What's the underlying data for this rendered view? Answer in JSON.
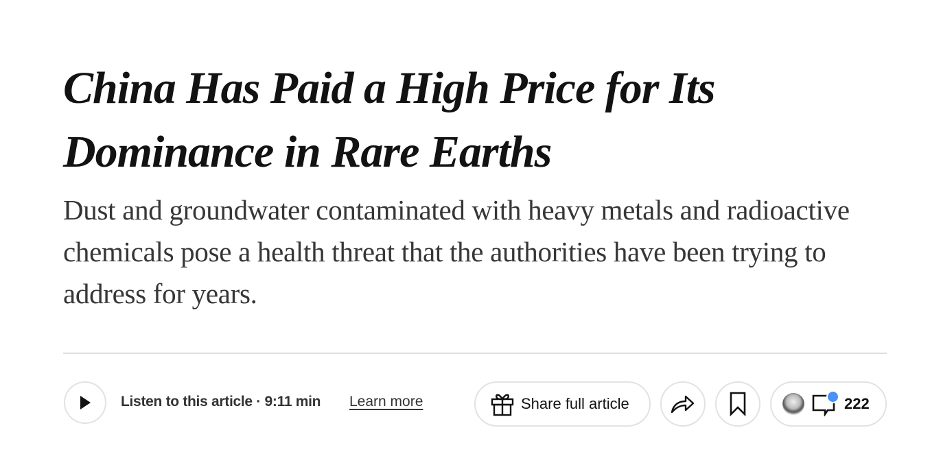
{
  "headline": "China Has Paid a High Price for Its Dominance in Rare Earths",
  "summary": "Dust and groundwater contaminated with heavy metals and radioactive chemicals pose a health threat that the authorities have been trying to address for years.",
  "toolbar": {
    "listen_label": "Listen to this article · 9:11 min",
    "learn_more": "Learn more",
    "share_full_article": "Share full article",
    "comment_count": "222",
    "notification_color": "#4a90f5"
  }
}
